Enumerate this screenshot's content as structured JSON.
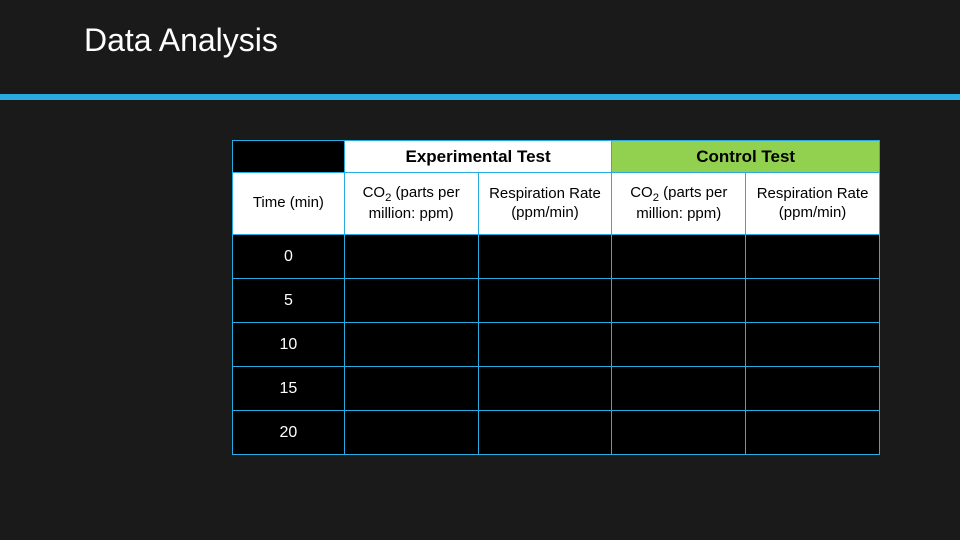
{
  "title": "Data Analysis",
  "table": {
    "group_headers": {
      "experimental": "Experimental Test",
      "control": "Control Test"
    },
    "columns": {
      "time": "Time (min)",
      "co2_html": "CO<sub>2</sub> (parts per million: ppm)",
      "resp": "Respiration Rate (ppm/min)"
    },
    "rows": [
      {
        "time": "0",
        "exp_co2": "",
        "exp_resp": "",
        "ctl_co2": "",
        "ctl_resp": ""
      },
      {
        "time": "5",
        "exp_co2": "",
        "exp_resp": "",
        "ctl_co2": "",
        "ctl_resp": ""
      },
      {
        "time": "10",
        "exp_co2": "",
        "exp_resp": "",
        "ctl_co2": "",
        "ctl_resp": ""
      },
      {
        "time": "15",
        "exp_co2": "",
        "exp_resp": "",
        "ctl_co2": "",
        "ctl_resp": ""
      },
      {
        "time": "20",
        "exp_co2": "",
        "exp_resp": "",
        "ctl_co2": "",
        "ctl_resp": ""
      }
    ],
    "colors": {
      "background": "#1a1a1a",
      "divider": "#29abe2",
      "border": "#29abe2",
      "header_bg": "#ffffff",
      "control_bg": "#92d050",
      "cell_bg": "#000000",
      "text_light": "#ffffff",
      "text_dark": "#000000"
    }
  }
}
